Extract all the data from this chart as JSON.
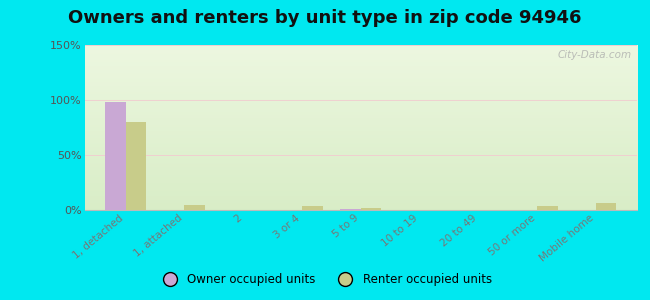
{
  "title": "Owners and renters by unit type in zip code 94946",
  "categories": [
    "1, detached",
    "1, attached",
    "2",
    "3 or 4",
    "5 to 9",
    "10 to 19",
    "20 to 49",
    "50 or more",
    "Mobile home"
  ],
  "owner_values": [
    98,
    0,
    0,
    0,
    1,
    0,
    0,
    0,
    0
  ],
  "renter_values": [
    80,
    5,
    0,
    4,
    2,
    0,
    0,
    4,
    6
  ],
  "owner_color": "#c9a8d4",
  "renter_color": "#c8cc8a",
  "background_outer": "#00e8f0",
  "ylim": [
    0,
    150
  ],
  "yticks": [
    0,
    50,
    100,
    150
  ],
  "ytick_labels": [
    "0%",
    "50%",
    "100%",
    "150%"
  ],
  "bar_width": 0.35,
  "title_fontsize": 13,
  "watermark": "City-Data.com",
  "legend_owner": "Owner occupied units",
  "legend_renter": "Renter occupied units"
}
